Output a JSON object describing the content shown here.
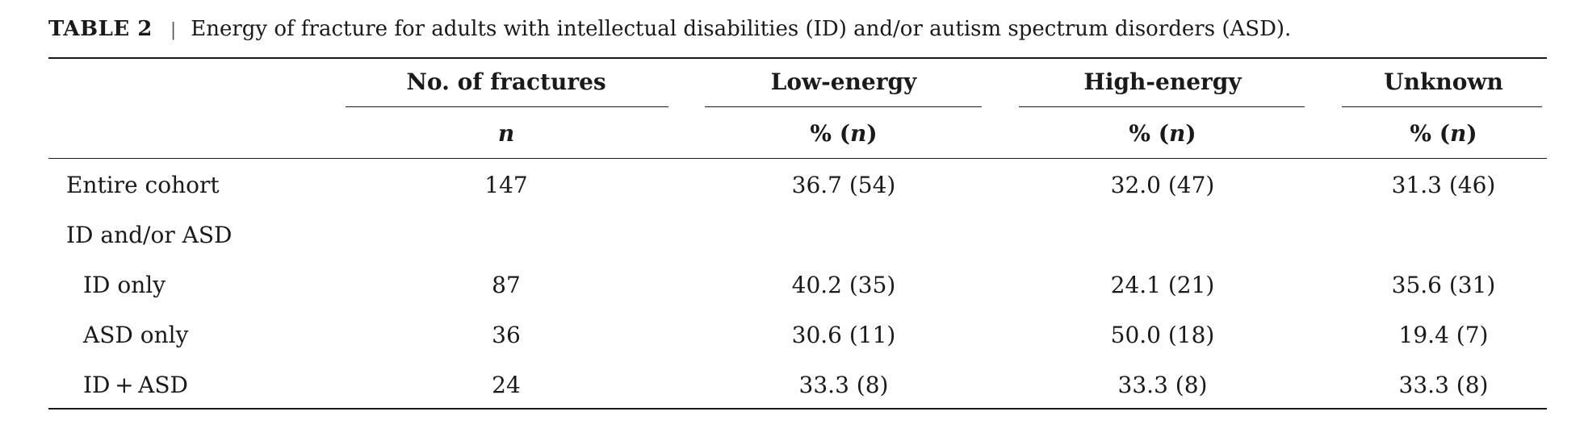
{
  "caption": {
    "label": "TABLE 2",
    "separator": "|",
    "text": "Energy of fracture for adults with intellectual disabilities (ID) and/or autism spectrum disorders (ASD)."
  },
  "columns": [
    {
      "header": "No. of fractures",
      "sub_prefix": "",
      "sub_n": "n",
      "sub_suffix": ""
    },
    {
      "header": "Low-energy",
      "sub_prefix": "% (",
      "sub_n": "n",
      "sub_suffix": ")"
    },
    {
      "header": "High-energy",
      "sub_prefix": "% (",
      "sub_n": "n",
      "sub_suffix": ")"
    },
    {
      "header": "Unknown",
      "sub_prefix": "% (",
      "sub_n": "n",
      "sub_suffix": ")"
    }
  ],
  "rows": [
    {
      "label": "Entire cohort",
      "values": [
        "147",
        "36.7 (54)",
        "32.0 (47)",
        "31.3 (46)"
      ]
    },
    {
      "label": "ID and/or ASD",
      "values": [
        "",
        "",
        "",
        ""
      ]
    },
    {
      "label": "ID only",
      "values": [
        "87",
        "40.2 (35)",
        "24.1 (21)",
        "35.6 (31)"
      ]
    },
    {
      "label": "ASD only",
      "values": [
        "36",
        "30.6 (11)",
        "50.0 (18)",
        "19.4 (7)"
      ]
    },
    {
      "label": "ID + ASD",
      "values": [
        "24",
        "33.3 (8)",
        "33.3 (8)",
        "33.3 (8)"
      ]
    }
  ]
}
